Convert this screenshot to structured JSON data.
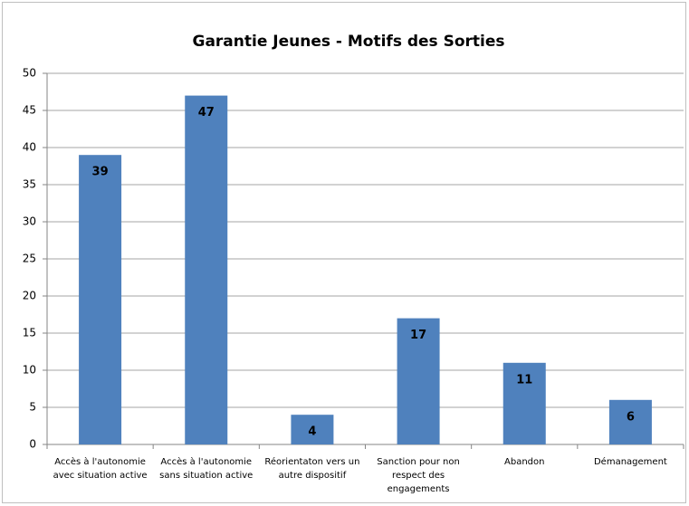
{
  "chart_data": {
    "type": "bar",
    "title": "Garantie Jeunes - Motifs des Sorties",
    "categories": [
      "Accès à l'autonomie avec situation active",
      "Accès à l'autonomie sans situation active",
      "Réorientaton vers un autre dispositif",
      "Sanction pour non respect des engagements",
      "Abandon",
      "Démanagement"
    ],
    "values": [
      39,
      47,
      4,
      17,
      11,
      6
    ],
    "color": "#4f81bd",
    "ylim": [
      0,
      50
    ],
    "yticks": [
      0,
      5,
      10,
      15,
      20,
      25,
      30,
      35,
      40,
      45,
      50
    ],
    "grid": true
  }
}
